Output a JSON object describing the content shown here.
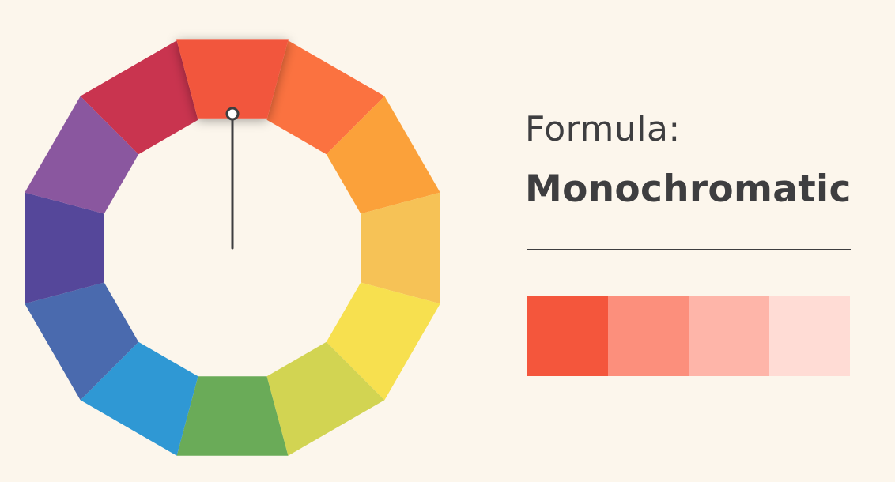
{
  "heading": {
    "formula_label": "Formula:",
    "scheme_name": "Monochromatic"
  },
  "wheel": {
    "segments": [
      {
        "hue": "red-orange",
        "color": "#f2563d"
      },
      {
        "hue": "orange",
        "color": "#fb7240"
      },
      {
        "hue": "yellow-orange",
        "color": "#fba13a"
      },
      {
        "hue": "light-orange",
        "color": "#f6c256"
      },
      {
        "hue": "yellow",
        "color": "#f7e04f"
      },
      {
        "hue": "yellow-green",
        "color": "#d2d452"
      },
      {
        "hue": "green",
        "color": "#6aab58"
      },
      {
        "hue": "blue",
        "color": "#2f98d4"
      },
      {
        "hue": "blue-violet",
        "color": "#4a6aae"
      },
      {
        "hue": "indigo",
        "color": "#55479a"
      },
      {
        "hue": "violet",
        "color": "#8a579f"
      },
      {
        "hue": "red",
        "color": "#c9344f"
      }
    ],
    "selected_index": 0,
    "pointer_icon": "pointer-handle-icon"
  },
  "palette": {
    "swatches": [
      {
        "color": "#f4563c"
      },
      {
        "color": "#fc8f7c"
      },
      {
        "color": "#feb5a9"
      },
      {
        "color": "#ffdcd5"
      }
    ]
  }
}
